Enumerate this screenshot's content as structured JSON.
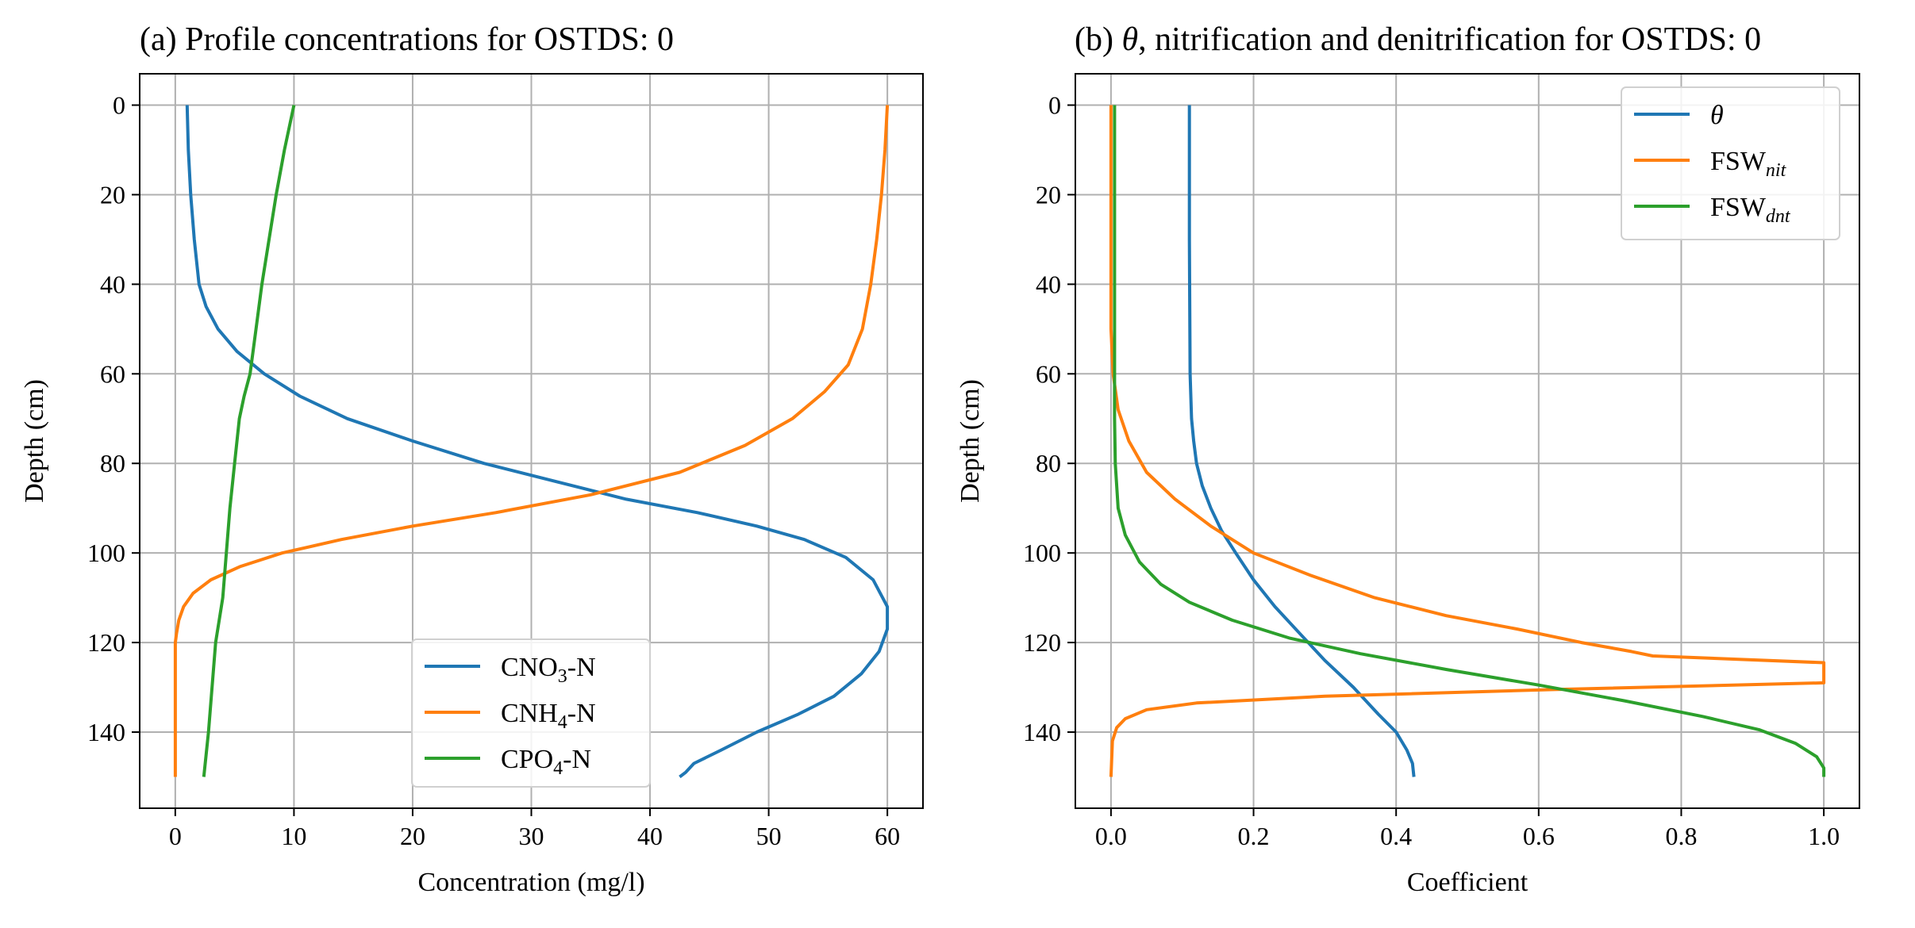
{
  "chart_data": [
    {
      "type": "line",
      "title": "(a) Profile concentrations for OSTDS: 0",
      "xlabel": "Concentration (mg/l)",
      "ylabel": "Depth (cm)",
      "xlim": [
        -3,
        63
      ],
      "ylim": [
        157,
        -7
      ],
      "y_inverted": true,
      "grid": true,
      "xticks": [
        0,
        10,
        20,
        30,
        40,
        50,
        60
      ],
      "yticks": [
        0,
        20,
        40,
        60,
        80,
        100,
        120,
        140
      ],
      "legend": "lower-center",
      "series": [
        {
          "name": "CNO3-N",
          "label_main": "CNO",
          "label_sub": "3",
          "label_tail": "-N",
          "color": "#1f77b4",
          "x": [
            1.0,
            1.1,
            1.3,
            1.6,
            2.0,
            2.6,
            3.6,
            5.2,
            7.5,
            10.5,
            14.5,
            20.0,
            26.0,
            32.0,
            38.0,
            44.0,
            49.0,
            53.0,
            56.5,
            58.8,
            60.0,
            60.0,
            59.3,
            57.8,
            55.5,
            52.5,
            49.0,
            46.0,
            43.7,
            43.0,
            42.5
          ],
          "y": [
            0,
            10,
            20,
            30,
            40,
            45,
            50,
            55,
            60,
            65,
            70,
            75,
            80,
            84,
            88,
            91,
            94,
            97,
            101,
            106,
            112,
            117,
            122,
            127,
            132,
            136,
            140,
            144,
            147,
            149,
            150
          ]
        },
        {
          "name": "CNH4-N",
          "label_main": "CNH",
          "label_sub": "4",
          "label_tail": "-N",
          "color": "#ff7f0e",
          "x": [
            60.0,
            59.8,
            59.5,
            59.1,
            58.6,
            57.9,
            56.7,
            54.7,
            52.0,
            48.0,
            42.5,
            35.0,
            27.0,
            20.0,
            14.0,
            9.0,
            5.5,
            3.0,
            1.5,
            0.7,
            0.3,
            0.1,
            0.0,
            0.0,
            0.0
          ],
          "y": [
            0,
            10,
            20,
            30,
            40,
            50,
            58,
            64,
            70,
            76,
            82,
            87,
            91,
            94,
            97,
            100,
            103,
            106,
            109,
            112,
            115,
            118,
            120,
            135,
            150
          ]
        },
        {
          "name": "CPO4-N",
          "label_main": "CPO",
          "label_sub": "4",
          "label_tail": "-N",
          "color": "#2ca02c",
          "x": [
            10.0,
            9.2,
            8.5,
            7.9,
            7.3,
            6.8,
            6.3,
            5.8,
            5.4,
            5.0,
            4.6,
            4.3,
            4.0,
            3.7,
            3.4,
            3.1,
            2.8,
            2.4
          ],
          "y": [
            0,
            10,
            20,
            30,
            40,
            50,
            60,
            65,
            70,
            80,
            90,
            100,
            110,
            115,
            120,
            130,
            140,
            150
          ]
        }
      ]
    },
    {
      "type": "line",
      "title_pre": "(b) ",
      "title_theta": "θ",
      "title_post": ", nitrification and denitrification for OSTDS: 0",
      "xlabel": "Coefficient",
      "ylabel": "Depth (cm)",
      "xlim": [
        -0.05,
        1.05
      ],
      "ylim": [
        157,
        -7
      ],
      "y_inverted": true,
      "grid": true,
      "xticks": [
        0.0,
        0.2,
        0.4,
        0.6,
        0.8,
        1.0
      ],
      "xtick_labels": [
        "0.0",
        "0.2",
        "0.4",
        "0.6",
        "0.8",
        "1.0"
      ],
      "yticks": [
        0,
        20,
        40,
        60,
        80,
        100,
        120,
        140
      ],
      "legend": "top-right",
      "series": [
        {
          "name": "θ",
          "label_main": "θ",
          "label_sub": "",
          "label_italic": true,
          "color": "#1f77b4",
          "x": [
            0.11,
            0.11,
            0.111,
            0.113,
            0.116,
            0.12,
            0.128,
            0.14,
            0.155,
            0.175,
            0.2,
            0.23,
            0.265,
            0.3,
            0.34,
            0.375,
            0.4,
            0.415,
            0.423,
            0.425
          ],
          "y": [
            0,
            30,
            60,
            70,
            75,
            80,
            85,
            90,
            95,
            100,
            106,
            112,
            118,
            124,
            130,
            136,
            140,
            144,
            147,
            150
          ]
        },
        {
          "name": "FSWnit",
          "label_main": "FSW",
          "label_sub": "nit",
          "color": "#ff7f0e",
          "x": [
            0.0,
            0.0,
            0.0,
            0.003,
            0.01,
            0.025,
            0.05,
            0.09,
            0.14,
            0.2,
            0.28,
            0.37,
            0.47,
            0.57,
            0.66,
            0.73,
            0.76,
            1.0,
            1.0,
            0.62,
            0.3,
            0.12,
            0.05,
            0.02,
            0.008,
            0.002,
            0.0
          ],
          "y": [
            0,
            30,
            50,
            60,
            68,
            75,
            82,
            88,
            94,
            100,
            105,
            110,
            114,
            117,
            120,
            122,
            123,
            124.5,
            129,
            130.5,
            132,
            133.5,
            135,
            137,
            139,
            142,
            150
          ]
        },
        {
          "name": "FSWdnt",
          "label_main": "FSW",
          "label_sub": "dnt",
          "color": "#2ca02c",
          "x": [
            0.005,
            0.005,
            0.005,
            0.006,
            0.01,
            0.02,
            0.04,
            0.07,
            0.11,
            0.17,
            0.25,
            0.35,
            0.47,
            0.6,
            0.72,
            0.83,
            0.91,
            0.96,
            0.99,
            1.0,
            1.0
          ],
          "y": [
            0,
            40,
            70,
            80,
            90,
            96,
            102,
            107,
            111,
            115,
            119,
            122.5,
            126,
            129.5,
            133,
            136.5,
            139.5,
            142.5,
            145.5,
            148,
            150
          ]
        }
      ]
    }
  ]
}
